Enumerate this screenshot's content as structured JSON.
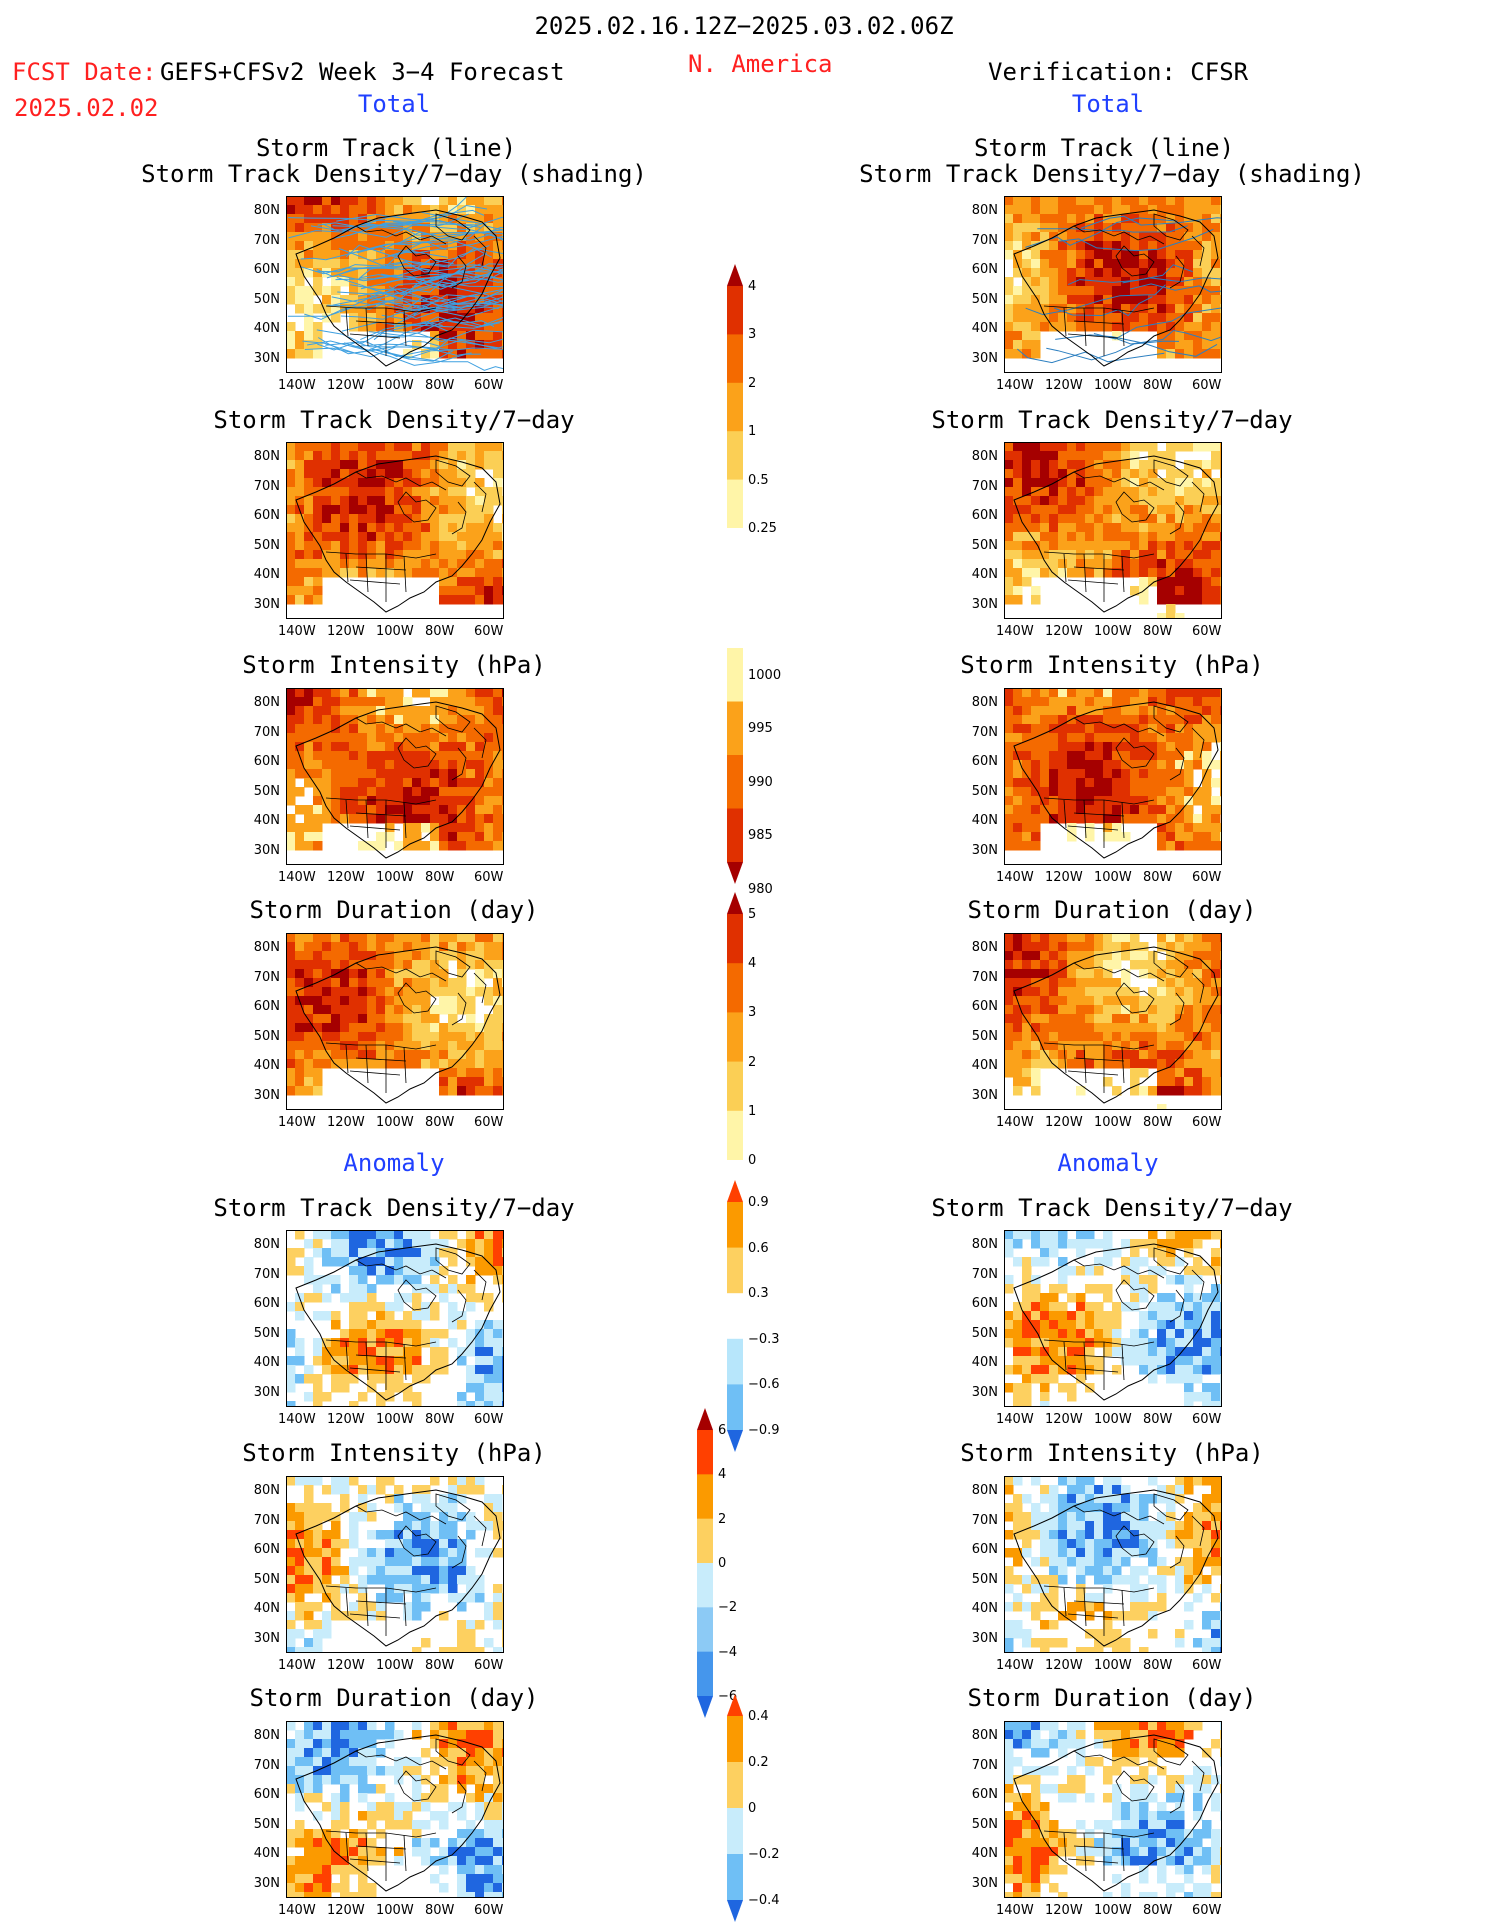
{
  "header": {
    "period": "2025.02.16.12Z−2025.03.02.06Z",
    "fcst_label": "FCST Date:",
    "fcst_date": "2025.02.02",
    "model": "GEFS+CFSv2 Week 3−4 Forecast",
    "region": "N. America",
    "verification": "Verification: CFSR"
  },
  "sections": {
    "total_left": "Total",
    "total_right": "Total",
    "anomaly_left": "Anomaly",
    "anomaly_right": "Anomaly"
  },
  "panel_titles": {
    "track_line": "Storm Track (line)",
    "track_shading": "Storm Track Density/7−day (shading)",
    "density": "Storm Track Density/7−day",
    "intensity": "Storm Intensity (hPa)",
    "duration": "Storm Duration (day)"
  },
  "axes": {
    "lat_labels": [
      "80N",
      "70N",
      "60N",
      "50N",
      "40N",
      "30N"
    ],
    "lon_labels": [
      "140W",
      "120W",
      "100W",
      "80W",
      "60W"
    ]
  },
  "colorbars": {
    "density_total": {
      "labels": [
        "4",
        "3",
        "2",
        "1",
        "0.5",
        "0.25"
      ],
      "colors": [
        "#a50000",
        "#e03000",
        "#f46a00",
        "#fba21a",
        "#fbcf55",
        "#fff5a8"
      ]
    },
    "intensity_total": {
      "labels": [
        "1000",
        "995",
        "990",
        "985",
        "980"
      ],
      "colors": [
        "#fff5a8",
        "#fba21a",
        "#f46a00",
        "#e03000",
        "#a50000"
      ]
    },
    "duration_total": {
      "labels": [
        "5",
        "4",
        "3",
        "2",
        "1",
        "0"
      ],
      "colors": [
        "#a50000",
        "#e03000",
        "#f46a00",
        "#fba21a",
        "#fbcf55",
        "#fff5a8"
      ]
    },
    "density_anom": {
      "labels": [
        "0.9",
        "0.6",
        "0.3",
        "−0.3",
        "−0.6",
        "−0.9"
      ],
      "colors": [
        "#ff4000",
        "#fb9a00",
        "#fdd060",
        "#ffffff",
        "#b7e6fb",
        "#6fbff5",
        "#1f66e0"
      ]
    },
    "intensity_anom": {
      "labels": [
        "6",
        "4",
        "2",
        "0",
        "−2",
        "−4",
        "−6"
      ],
      "colors": [
        "#a50000",
        "#ff4000",
        "#fb9a00",
        "#fdd060",
        "#c8ecfb",
        "#8ccaf5",
        "#4596ec",
        "#1f66e0"
      ]
    },
    "duration_anom": {
      "labels": [
        "0.4",
        "0.2",
        "0",
        "−0.2",
        "−0.4"
      ],
      "colors": [
        "#ff4000",
        "#fb9a00",
        "#fdd060",
        "#c8ecfb",
        "#6fbff5",
        "#1f66e0"
      ]
    }
  }
}
